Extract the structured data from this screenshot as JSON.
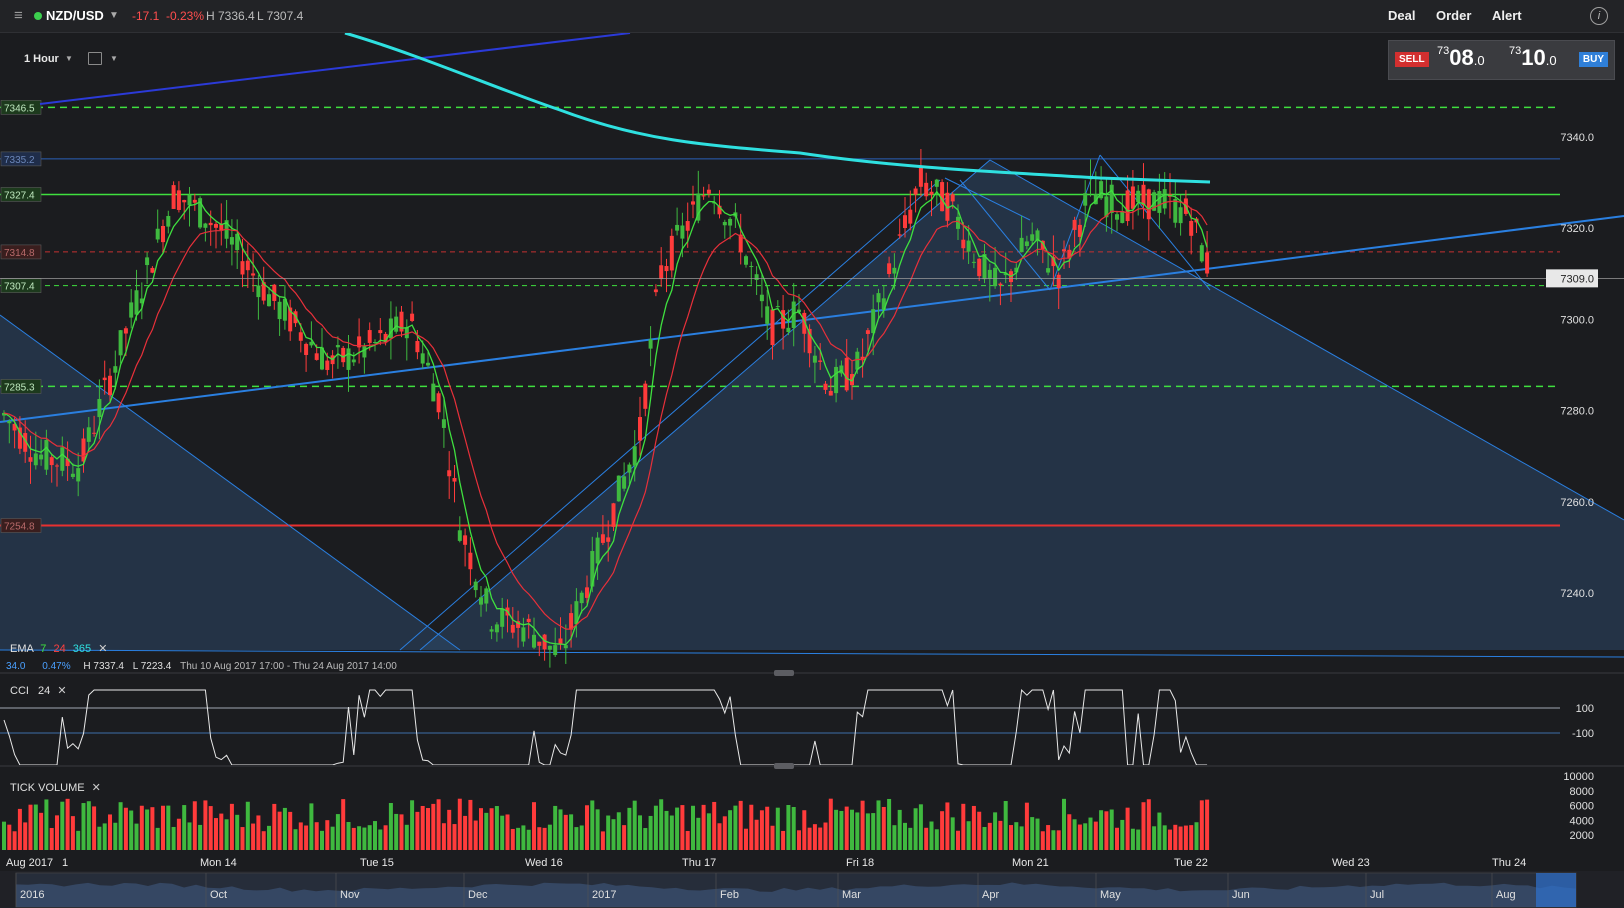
{
  "header": {
    "symbol": "NZD/USD",
    "change": "-17.1",
    "change_pct": "-0.23%",
    "high": "H 7336.4",
    "low": "L 7307.4",
    "actions": {
      "deal": "Deal",
      "order": "Order",
      "alert": "Alert"
    }
  },
  "toolbar": {
    "timeframe": "1 Hour"
  },
  "quote": {
    "sell_label": "SELL",
    "sell_small": "73",
    "sell_big": "08",
    "sell_tail": ".0",
    "buy_label": "BUY",
    "buy_small": "73",
    "buy_big": "10",
    "buy_tail": ".0"
  },
  "price_axis": [
    "7340.0",
    "7320.0",
    "7309.0",
    "7300.0",
    "7280.0",
    "7260.0",
    "7240.0"
  ],
  "level_tags": [
    "7346.5",
    "7335.2",
    "7327.4",
    "7314.8",
    "7307.4",
    "7285.3",
    "7254.8"
  ],
  "ema_legend": {
    "label": "EMA",
    "p1": "7",
    "p2": "24",
    "p3": "365",
    "v1": "34.0",
    "v2": "0.47%",
    "hi": "H 7337.4",
    "lo": "L 7223.4",
    "range": "Thu 10 Aug 2017 17:00 - Thu 24 Aug 2017 14:00"
  },
  "cci": {
    "label": "CCI",
    "period": "24",
    "ticks": [
      "100",
      "-100"
    ]
  },
  "tick_volume": {
    "label": "TICK VOLUME",
    "ticks": [
      "10000",
      "8000",
      "6000",
      "4000",
      "2000"
    ]
  },
  "time_axis": [
    "Aug 2017",
    "1",
    "Mon 14",
    "Tue 15",
    "Wed 16",
    "Thu 17",
    "Fri 18",
    "Mon 21",
    "Tue 22",
    "Wed 23",
    "Thu 24"
  ],
  "navigator_axis": [
    "2016",
    "Oct",
    "Nov",
    "Dec",
    "2017",
    "Feb",
    "Mar",
    "Apr",
    "May",
    "Jun",
    "Jul",
    "Aug"
  ],
  "colors": {
    "up": "#3fb93f",
    "down": "#ff3b3b",
    "ema7": "#3fe03f",
    "ema24": "#e8303a",
    "ema365": "#2fe0e0",
    "trend": "#2a7fe0"
  }
}
